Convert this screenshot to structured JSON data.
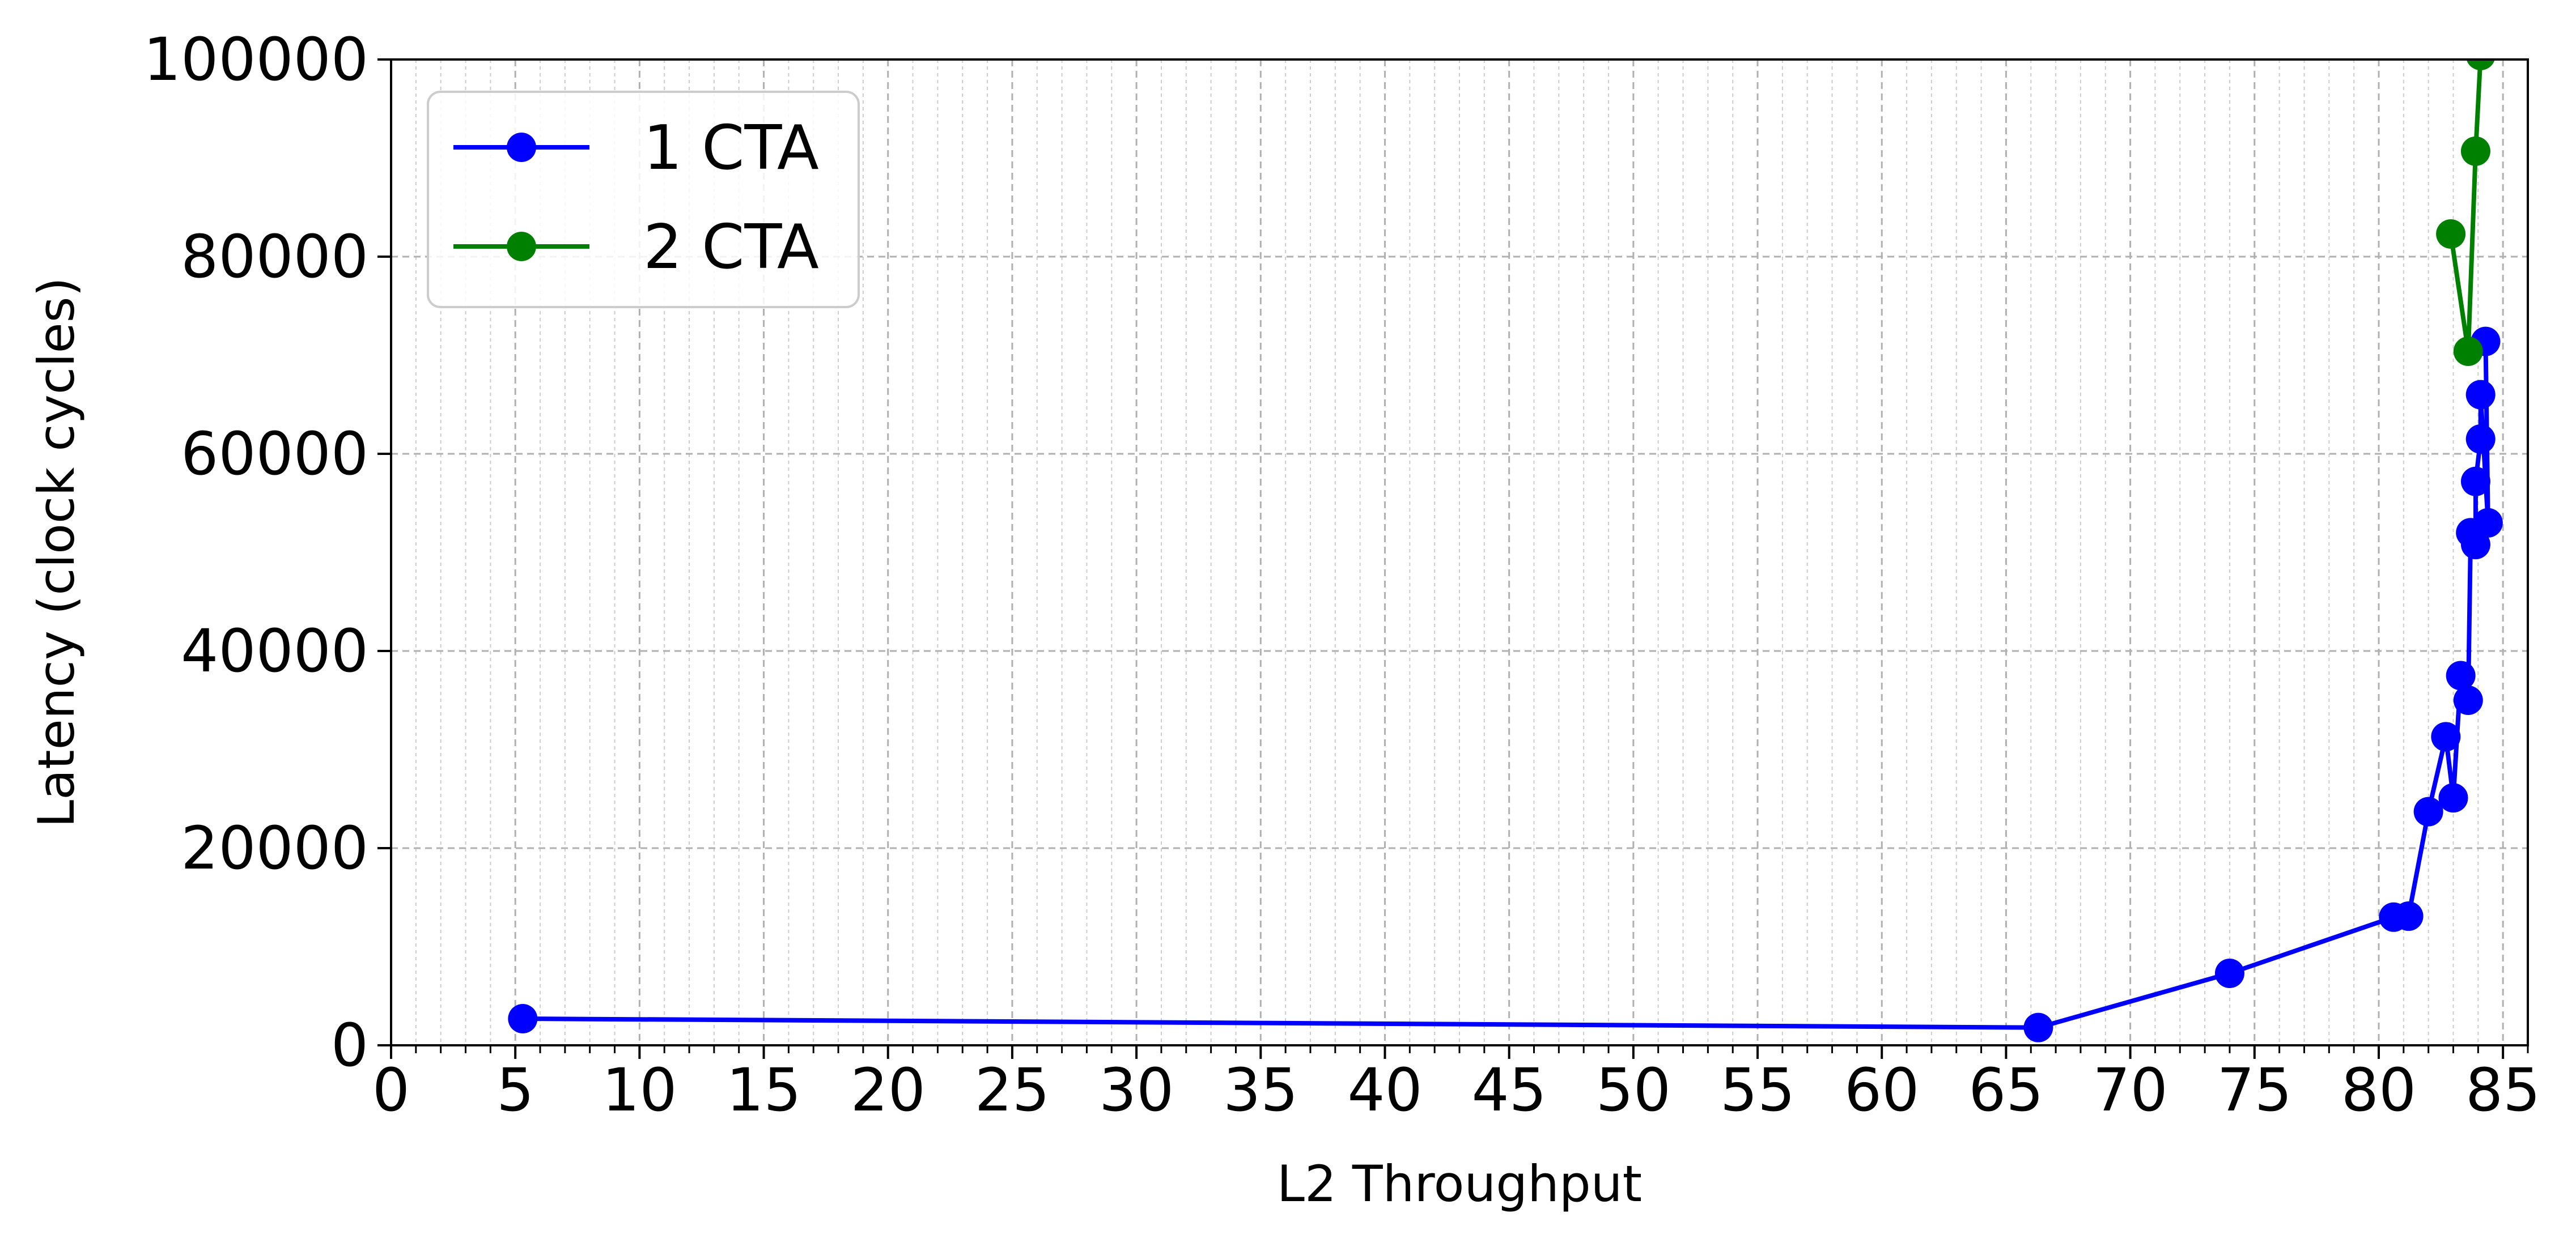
{
  "chart_data": {
    "type": "line",
    "xlabel": "L2 Throughput",
    "ylabel": "Latency (clock cycles)",
    "xlim": [
      0,
      86
    ],
    "ylim": [
      0,
      100000
    ],
    "x_ticks": [
      0,
      5,
      10,
      15,
      20,
      25,
      30,
      35,
      40,
      45,
      50,
      55,
      60,
      65,
      70,
      75,
      80,
      85
    ],
    "y_ticks": [
      0,
      20000,
      40000,
      60000,
      80000,
      100000
    ],
    "x_minor_step": 1,
    "grid": "major and minor, dashed",
    "legend_position": "upper-left",
    "series": [
      {
        "name": "1 CTA",
        "color": "#0000ff",
        "points": [
          [
            5.3,
            2700
          ],
          [
            66.3,
            1800
          ],
          [
            74.0,
            7300
          ],
          [
            80.6,
            13000
          ],
          [
            81.2,
            13100
          ],
          [
            82.0,
            23700
          ],
          [
            82.7,
            31300
          ],
          [
            83.0,
            25100
          ],
          [
            83.3,
            37500
          ],
          [
            83.6,
            35000
          ],
          [
            83.7,
            52000
          ],
          [
            83.9,
            50800
          ],
          [
            83.9,
            57200
          ],
          [
            84.1,
            61500
          ],
          [
            84.1,
            66000
          ],
          [
            84.4,
            53000
          ],
          [
            84.3,
            71400
          ]
        ]
      },
      {
        "name": "2 CTA",
        "color": "#008000",
        "points": [
          [
            82.9,
            82300
          ],
          [
            83.6,
            70400
          ],
          [
            83.9,
            90700
          ],
          [
            84.1,
            100400
          ]
        ]
      }
    ]
  }
}
